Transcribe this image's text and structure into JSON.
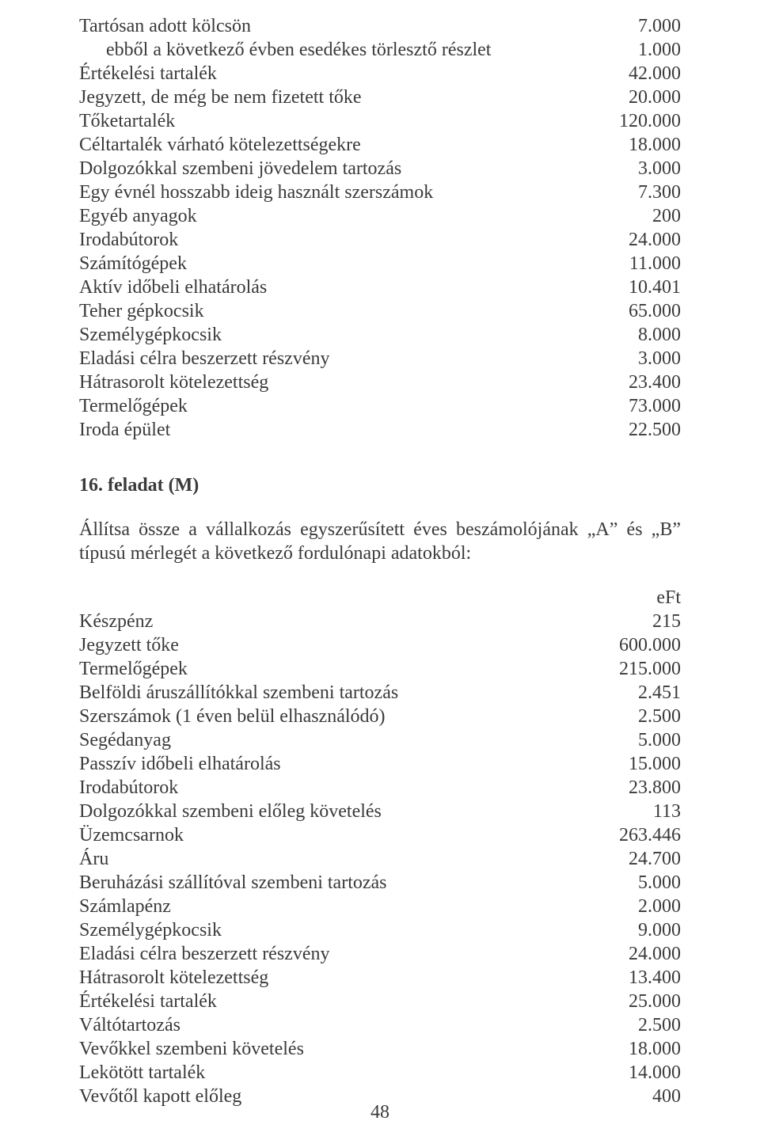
{
  "block1": {
    "rows": [
      {
        "label": "Tartósan adott kölcsön",
        "value": "7.000",
        "indent": 0
      },
      {
        "label": "ebből a következő évben esedékes törlesztő részlet",
        "value": "1.000",
        "indent": 1
      },
      {
        "label": "Értékelési tartalék",
        "value": "42.000",
        "indent": 0
      },
      {
        "label": "Jegyzett, de még be nem fizetett tőke",
        "value": "20.000",
        "indent": 0
      },
      {
        "label": "Tőketartalék",
        "value": "120.000",
        "indent": 0
      },
      {
        "label": "Céltartalék várható kötelezettségekre",
        "value": "18.000",
        "indent": 0
      },
      {
        "label": "Dolgozókkal szembeni jövedelem tartozás",
        "value": "3.000",
        "indent": 0
      },
      {
        "label": "Egy évnél hosszabb ideig használt szerszámok",
        "value": "7.300",
        "indent": 0
      },
      {
        "label": "Egyéb anyagok",
        "value": "200",
        "indent": 0
      },
      {
        "label": "Irodabútorok",
        "value": "24.000",
        "indent": 0
      },
      {
        "label": "Számítógépek",
        "value": "11.000",
        "indent": 0
      },
      {
        "label": "Aktív időbeli elhatárolás",
        "value": "10.401",
        "indent": 0
      },
      {
        "label": "Teher gépkocsik",
        "value": "65.000",
        "indent": 0
      },
      {
        "label": "Személygépkocsik",
        "value": "8.000",
        "indent": 0
      },
      {
        "label": "Eladási célra beszerzett részvény",
        "value": "3.000",
        "indent": 0
      },
      {
        "label": "Hátrasorolt kötelezettség",
        "value": "23.400",
        "indent": 0
      },
      {
        "label": "Termelőgépek",
        "value": "73.000",
        "indent": 0
      },
      {
        "label": "Iroda épület",
        "value": "22.500",
        "indent": 0
      }
    ]
  },
  "task": {
    "heading": "16. feladat (M)",
    "intro": "Állítsa össze a vállalkozás egyszerűsített éves beszámolójának „A” és „B” típusú mérlegét a következő fordulónapi adatokból:"
  },
  "block2": {
    "unit": "eFt",
    "rows": [
      {
        "label": "Készpénz",
        "value": "215"
      },
      {
        "label": "Jegyzett tőke",
        "value": "600.000"
      },
      {
        "label": "Termelőgépek",
        "value": "215.000"
      },
      {
        "label": "Belföldi áruszállítókkal szembeni tartozás",
        "value": "2.451"
      },
      {
        "label": "Szerszámok (1 éven belül elhasználódó)",
        "value": "2.500"
      },
      {
        "label": "Segédanyag",
        "value": "5.000"
      },
      {
        "label": "Passzív időbeli elhatárolás",
        "value": "15.000"
      },
      {
        "label": "Irodabútorok",
        "value": "23.800"
      },
      {
        "label": "Dolgozókkal szembeni előleg követelés",
        "value": "113"
      },
      {
        "label": "Üzemcsarnok",
        "value": "263.446"
      },
      {
        "label": "Áru",
        "value": "24.700"
      },
      {
        "label": "Beruházási szállítóval szembeni tartozás",
        "value": "5.000"
      },
      {
        "label": "Számlapénz",
        "value": "2.000"
      },
      {
        "label": "Személygépkocsik",
        "value": "9.000"
      },
      {
        "label": "Eladási célra beszerzett részvény",
        "value": "24.000"
      },
      {
        "label": "Hátrasorolt kötelezettség",
        "value": "13.400"
      },
      {
        "label": "Értékelési tartalék",
        "value": "25.000"
      },
      {
        "label": "Váltótartozás",
        "value": "2.500"
      },
      {
        "label": "Vevőkkel szembeni követelés",
        "value": "18.000"
      },
      {
        "label": "Lekötött tartalék",
        "value": "14.000"
      },
      {
        "label": "Vevőtől kapott előleg",
        "value": "400"
      }
    ]
  },
  "pageNumber": "48"
}
